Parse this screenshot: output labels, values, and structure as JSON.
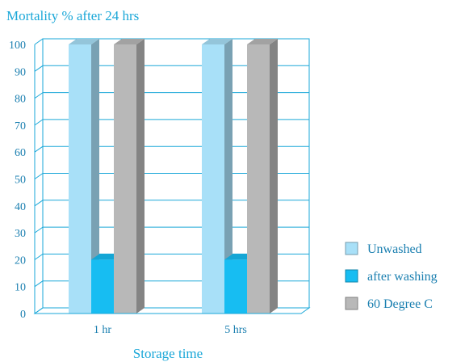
{
  "chart_data": {
    "type": "bar",
    "title": "Mortality % after 24 hrs",
    "xlabel": "Storage time",
    "ylabel": "",
    "categories": [
      "1 hr",
      "5 hrs"
    ],
    "ylim": [
      0,
      100
    ],
    "yticks": [
      0,
      10,
      20,
      30,
      40,
      50,
      60,
      70,
      80,
      90,
      100
    ],
    "grid": true,
    "legend_position": "right",
    "series": [
      {
        "name": "Unwashed",
        "values": [
          100,
          100
        ],
        "color": "#a8e0f8"
      },
      {
        "name": "after washing",
        "values": [
          20,
          20
        ],
        "color": "#17bdf2"
      },
      {
        "name": "60 Degree C",
        "values": [
          100,
          100
        ],
        "color": "#b8b8b8"
      }
    ],
    "colors": {
      "axis": "#1aa7d8",
      "text": "#1a7fb0"
    }
  }
}
